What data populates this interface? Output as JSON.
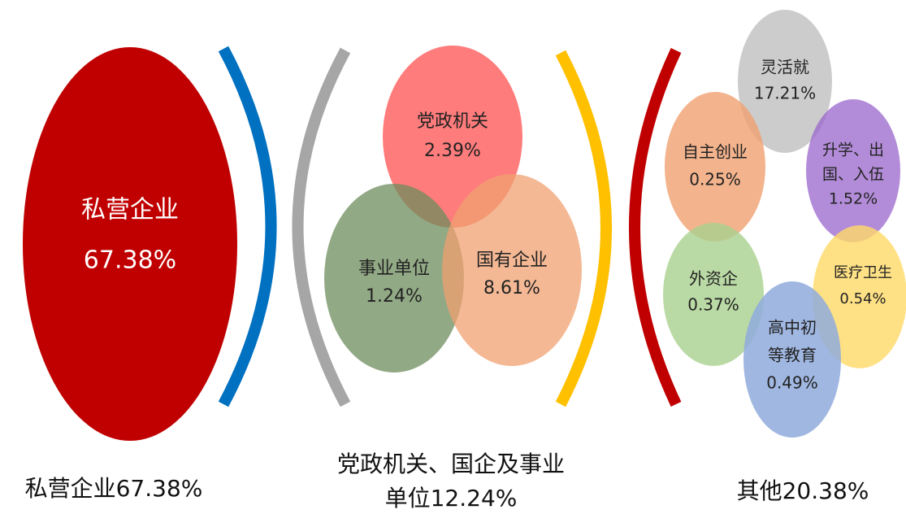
{
  "groups": [
    {
      "label_lines": [
        "私营企业67.38%"
      ],
      "nodes": [
        {
          "lines": [
            "私营企业",
            "67.38%"
          ]
        }
      ]
    },
    {
      "label_lines": [
        "党政机关、国企及事业",
        "单位12.24%"
      ],
      "nodes": [
        {
          "lines": [
            "党政机关",
            "2.39%"
          ]
        },
        {
          "lines": [
            "事业单位",
            "1.24%"
          ]
        },
        {
          "lines": [
            "国有企业",
            "8.61%"
          ]
        }
      ]
    },
    {
      "label_lines": [
        "其他20.38%"
      ],
      "nodes": [
        {
          "lines": [
            "灵活就",
            "17.21%"
          ]
        },
        {
          "lines": [
            "自主创业",
            "0.25%"
          ]
        },
        {
          "lines": [
            "升学、出",
            "国、入伍",
            "1.52%"
          ]
        },
        {
          "lines": [
            "外资企",
            "0.37%"
          ]
        },
        {
          "lines": [
            "医疗卫生",
            "0.54%"
          ]
        },
        {
          "lines": [
            "高中初",
            "等教育",
            "0.49%"
          ]
        }
      ]
    }
  ]
}
